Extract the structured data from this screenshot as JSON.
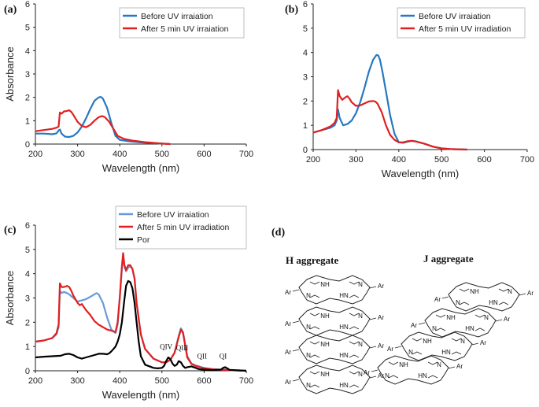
{
  "colors": {
    "before": "#2878c0",
    "after": "#e02020",
    "por": "#000000",
    "before_c": "#6a9ad6"
  },
  "chart_data": [
    {
      "type": "line",
      "panel_label": "(a)",
      "xlabel": "Wavelength (nm)",
      "ylabel": "Absorbance",
      "xlim": [
        200,
        700
      ],
      "ylim": [
        0,
        6
      ],
      "xticks": [
        200,
        300,
        400,
        500,
        600,
        700
      ],
      "yticks": [
        0,
        1,
        2,
        3,
        4,
        5,
        6
      ],
      "legend": "top-right",
      "series": [
        {
          "name": "Before UV irraiation",
          "color": "#2878c0",
          "x": [
            200,
            220,
            240,
            250,
            255,
            258,
            262,
            270,
            280,
            290,
            300,
            310,
            320,
            330,
            340,
            350,
            355,
            360,
            370,
            380,
            390,
            400,
            420,
            450,
            500,
            520
          ],
          "y": [
            0.45,
            0.45,
            0.42,
            0.46,
            0.58,
            0.62,
            0.45,
            0.32,
            0.3,
            0.35,
            0.5,
            0.75,
            1.1,
            1.5,
            1.85,
            2.0,
            2.02,
            1.95,
            1.55,
            0.9,
            0.35,
            0.18,
            0.12,
            0.07,
            0.02,
            0.0
          ]
        },
        {
          "name": "After 5 min UV irraiation",
          "color": "#e02020",
          "x": [
            200,
            220,
            240,
            250,
            255,
            258,
            262,
            268,
            275,
            280,
            285,
            290,
            300,
            310,
            320,
            330,
            340,
            350,
            358,
            365,
            375,
            385,
            395,
            410,
            430,
            460,
            500,
            520
          ],
          "y": [
            0.55,
            0.6,
            0.65,
            0.7,
            0.75,
            1.35,
            1.3,
            1.4,
            1.42,
            1.45,
            1.38,
            1.25,
            0.95,
            0.78,
            0.72,
            0.82,
            1.0,
            1.15,
            1.2,
            1.15,
            0.95,
            0.65,
            0.35,
            0.22,
            0.15,
            0.08,
            0.02,
            0.0
          ]
        }
      ]
    },
    {
      "type": "line",
      "panel_label": "(b)",
      "xlabel": "Wavelength (nm)",
      "ylabel": "",
      "xlim": [
        200,
        700
      ],
      "ylim": [
        0,
        6
      ],
      "xticks": [
        200,
        300,
        400,
        500,
        600,
        700
      ],
      "yticks": [
        0,
        1,
        2,
        3,
        4,
        5,
        6
      ],
      "legend": "top-right",
      "series": [
        {
          "name": "Before UV irraiation",
          "color": "#2878c0",
          "x": [
            200,
            220,
            240,
            250,
            255,
            258,
            262,
            270,
            280,
            290,
            300,
            310,
            320,
            330,
            340,
            348,
            352,
            356,
            362,
            370,
            380,
            390,
            400,
            410,
            420,
            430,
            440,
            460,
            480,
            500,
            520,
            560
          ],
          "y": [
            0.7,
            0.8,
            0.9,
            1.0,
            1.2,
            1.65,
            1.3,
            1.0,
            1.05,
            1.2,
            1.5,
            1.95,
            2.55,
            3.2,
            3.7,
            3.9,
            3.88,
            3.7,
            3.2,
            2.4,
            1.4,
            0.65,
            0.3,
            0.28,
            0.32,
            0.36,
            0.34,
            0.24,
            0.12,
            0.05,
            0.02,
            0.0
          ]
        },
        {
          "name": "After 5 min UV irradiation",
          "color": "#e02020",
          "x": [
            200,
            220,
            240,
            250,
            255,
            258,
            262,
            268,
            275,
            280,
            285,
            290,
            300,
            310,
            320,
            330,
            340,
            345,
            350,
            360,
            370,
            380,
            390,
            400,
            410,
            420,
            430,
            440,
            460,
            480,
            500,
            520,
            560
          ],
          "y": [
            0.7,
            0.8,
            0.95,
            1.1,
            1.3,
            2.45,
            2.2,
            2.05,
            2.15,
            2.2,
            2.1,
            1.95,
            1.8,
            1.82,
            1.9,
            1.98,
            2.0,
            1.98,
            1.9,
            1.55,
            1.0,
            0.6,
            0.4,
            0.3,
            0.3,
            0.34,
            0.36,
            0.33,
            0.24,
            0.12,
            0.05,
            0.02,
            0.0
          ]
        }
      ]
    },
    {
      "type": "line",
      "panel_label": "(c)",
      "xlabel": "Wavelength (nm)",
      "ylabel": "Absorbance",
      "xlim": [
        200,
        700
      ],
      "ylim": [
        0,
        6
      ],
      "xticks": [
        200,
        300,
        400,
        500,
        600,
        700
      ],
      "yticks": [
        0,
        1,
        2,
        3,
        4,
        5,
        6
      ],
      "legend": "top-right",
      "annotations": [
        "QIV",
        "QIII",
        "QII",
        "QI"
      ],
      "series": [
        {
          "name": "Before UV irraiation",
          "color": "#6a9ad6",
          "x": [
            200,
            220,
            240,
            250,
            255,
            258,
            262,
            268,
            275,
            280,
            290,
            300,
            305,
            310,
            320,
            330,
            340,
            345,
            350,
            360,
            370,
            380,
            390,
            395,
            400,
            405,
            408,
            411,
            415,
            420,
            425,
            430,
            435,
            440,
            450,
            460,
            480,
            500,
            510,
            520,
            530,
            540,
            545,
            550,
            555,
            560,
            570,
            580,
            600,
            620,
            640,
            650,
            660,
            680,
            700
          ],
          "y": [
            1.2,
            1.25,
            1.35,
            1.5,
            1.8,
            3.3,
            3.2,
            3.25,
            3.2,
            3.15,
            3.0,
            2.85,
            2.88,
            2.9,
            2.95,
            3.05,
            3.15,
            3.2,
            3.15,
            2.8,
            2.2,
            1.7,
            1.55,
            1.9,
            3.0,
            4.2,
            4.75,
            4.3,
            4.1,
            4.25,
            4.3,
            4.2,
            3.8,
            2.8,
            1.5,
            0.9,
            0.5,
            0.35,
            0.35,
            0.45,
            0.75,
            1.45,
            1.75,
            1.6,
            1.1,
            0.6,
            0.3,
            0.22,
            0.12,
            0.07,
            0.05,
            0.05,
            0.03,
            0.01,
            0.0
          ]
        },
        {
          "name": "After 5 min UV irradiation",
          "color": "#e02020",
          "x": [
            200,
            220,
            240,
            250,
            255,
            258,
            262,
            268,
            275,
            280,
            285,
            290,
            300,
            305,
            310,
            320,
            330,
            340,
            350,
            360,
            370,
            380,
            390,
            395,
            400,
            405,
            408,
            411,
            415,
            420,
            425,
            430,
            435,
            440,
            450,
            460,
            480,
            500,
            510,
            520,
            530,
            540,
            545,
            550,
            555,
            560,
            570,
            580,
            600,
            620,
            640,
            650,
            660,
            680,
            700
          ],
          "y": [
            1.2,
            1.25,
            1.35,
            1.55,
            1.9,
            3.6,
            3.45,
            3.45,
            3.5,
            3.45,
            3.3,
            3.1,
            2.8,
            2.7,
            2.75,
            2.5,
            2.3,
            2.05,
            1.9,
            1.8,
            1.7,
            1.65,
            1.6,
            2.0,
            3.0,
            4.3,
            4.85,
            4.35,
            4.15,
            4.35,
            4.35,
            4.2,
            3.8,
            2.8,
            1.5,
            0.9,
            0.5,
            0.35,
            0.35,
            0.45,
            0.75,
            1.4,
            1.7,
            1.55,
            1.05,
            0.55,
            0.28,
            0.2,
            0.1,
            0.06,
            0.04,
            0.04,
            0.03,
            0.01,
            0.0
          ]
        },
        {
          "name": "Por",
          "color": "#000000",
          "x": [
            200,
            220,
            240,
            260,
            270,
            280,
            290,
            300,
            310,
            320,
            330,
            340,
            350,
            360,
            370,
            375,
            380,
            385,
            390,
            395,
            400,
            405,
            410,
            415,
            420,
            425,
            430,
            435,
            440,
            445,
            450,
            460,
            480,
            490,
            500,
            505,
            510,
            515,
            520,
            525,
            530,
            535,
            540,
            545,
            550,
            555,
            560,
            570,
            580,
            585,
            590,
            600,
            620,
            640,
            645,
            650,
            655,
            660,
            680,
            700
          ],
          "y": [
            0.55,
            0.58,
            0.6,
            0.62,
            0.68,
            0.7,
            0.65,
            0.55,
            0.5,
            0.55,
            0.6,
            0.65,
            0.7,
            0.7,
            0.68,
            0.72,
            0.8,
            0.9,
            1.0,
            1.2,
            1.5,
            2.0,
            2.8,
            3.5,
            3.7,
            3.65,
            3.4,
            2.8,
            2.0,
            1.2,
            0.6,
            0.25,
            0.12,
            0.1,
            0.12,
            0.2,
            0.4,
            0.55,
            0.48,
            0.3,
            0.2,
            0.25,
            0.4,
            0.35,
            0.2,
            0.12,
            0.15,
            0.18,
            0.12,
            0.08,
            0.06,
            0.05,
            0.03,
            0.05,
            0.12,
            0.15,
            0.1,
            0.04,
            0.02,
            0.0
          ]
        }
      ]
    }
  ],
  "panel_d": {
    "label": "(d)",
    "h_title": "H aggregate",
    "j_title": "J aggregate",
    "ar": "Ar",
    "nh": "NH",
    "hn": "HN",
    "n": "N"
  }
}
